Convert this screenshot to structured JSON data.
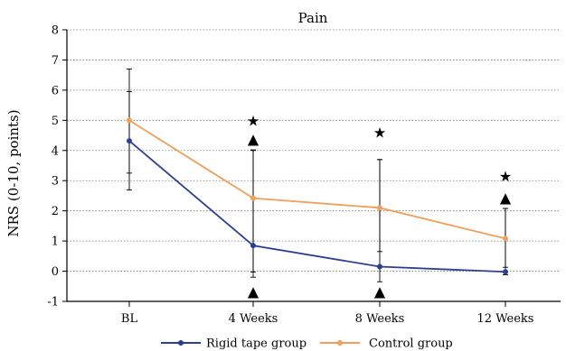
{
  "chart_data": {
    "type": "line",
    "title": "Pain",
    "xlabel": "",
    "ylabel": "NRS (0-10, points)",
    "ylim": [
      -1,
      8
    ],
    "yticks": [
      -1,
      0,
      1,
      2,
      3,
      4,
      5,
      6,
      7,
      8
    ],
    "grid": "horizontal dotted",
    "legend": "bottom",
    "categories": [
      "BL",
      "4 Weeks",
      "8 Weeks",
      "12 Weeks"
    ],
    "series": [
      {
        "name": "Rigid tape group",
        "color": "#2b3f95",
        "values": [
          4.32,
          0.85,
          0.15,
          -0.02
        ],
        "error_plus": [
          1.63,
          3.15,
          3.55,
          2.1
        ],
        "error_minus": [
          1.63,
          1.05,
          0.5,
          0.1
        ]
      },
      {
        "name": "Control group",
        "color": "#f0a058",
        "values": [
          5.0,
          2.42,
          2.1,
          1.08
        ],
        "error_plus": [
          1.7,
          1.6,
          1.6,
          1.0
        ],
        "error_minus": [
          1.75,
          2.45,
          1.45,
          0.95
        ]
      }
    ],
    "annotations": [
      {
        "category": "4 Weeks",
        "symbol": "★",
        "y": 5.0
      },
      {
        "category": "4 Weeks",
        "symbol": "▲",
        "y": 4.4
      },
      {
        "category": "4 Weeks",
        "symbol": "▲",
        "y": -0.65
      },
      {
        "category": "8 Weeks",
        "symbol": "★",
        "y": 4.6
      },
      {
        "category": "8 Weeks",
        "symbol": "▲",
        "y": -0.65
      },
      {
        "category": "12 Weeks",
        "symbol": "★",
        "y": 3.15
      },
      {
        "category": "12 Weeks",
        "symbol": "▲",
        "y": 2.45
      }
    ]
  }
}
